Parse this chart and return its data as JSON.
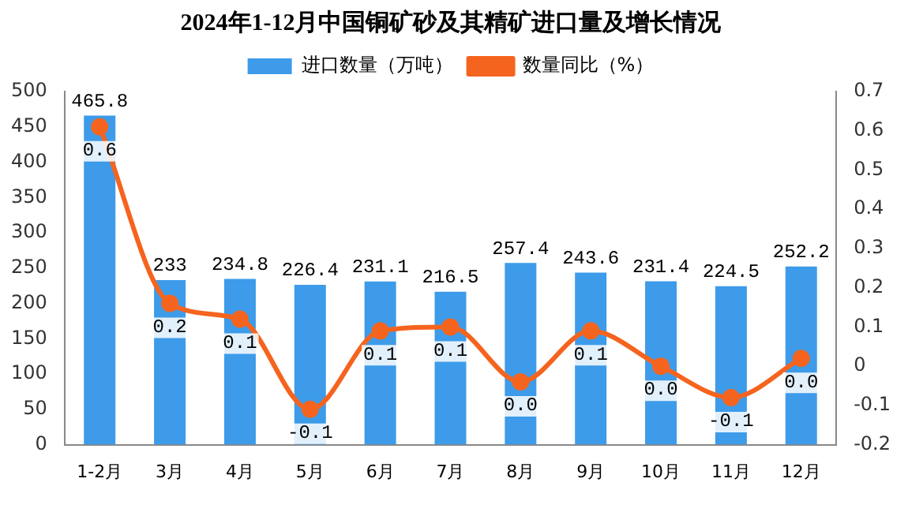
{
  "chart_data": {
    "type": "bar",
    "title": "2024年1-12月中国铜矿砂及其精矿进口量及增长情况",
    "categories": [
      "1-2月",
      "3月",
      "4月",
      "5月",
      "6月",
      "7月",
      "8月",
      "9月",
      "10月",
      "11月",
      "12月"
    ],
    "series": [
      {
        "name": "进口数量（万吨）",
        "color": "#3d9be9",
        "values": [
          465.8,
          233,
          234.8,
          226.4,
          231.1,
          216.5,
          257.4,
          243.6,
          231.4,
          224.5,
          252.2
        ],
        "value_labels": [
          "465.8",
          "233",
          "234.8",
          "226.4",
          "231.1",
          "216.5",
          "257.4",
          "243.6",
          "231.4",
          "224.5",
          "252.2"
        ]
      },
      {
        "name": "数量同比（%）",
        "type": "line",
        "axis": "y2",
        "color": "#f5641e",
        "values": [
          0.61,
          0.16,
          0.12,
          -0.11,
          0.09,
          0.1,
          -0.04,
          0.09,
          0.0,
          -0.08,
          0.02
        ],
        "value_labels": [
          "0.6",
          "0.2",
          "0.1",
          "-0.1",
          "0.1",
          "0.1",
          "0.0",
          "0.1",
          "0.0",
          "-0.1",
          "0.0"
        ]
      }
    ],
    "ylim": [
      0,
      500
    ],
    "yticks": [
      0,
      50,
      100,
      150,
      200,
      250,
      300,
      350,
      400,
      450,
      500
    ],
    "y2lim": [
      -0.2,
      0.7
    ],
    "y2ticks": [
      -0.2,
      -0.1,
      0,
      0.1,
      0.2,
      0.3,
      0.4,
      0.5,
      0.6,
      0.7
    ],
    "legend": "top",
    "grid": false,
    "marker": "circle"
  }
}
